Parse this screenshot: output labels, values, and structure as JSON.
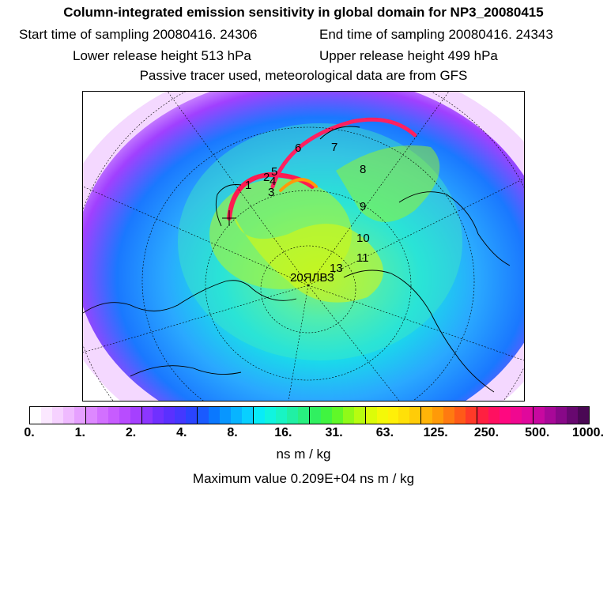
{
  "header": {
    "title": "Column-integrated emission sensitivity in global domain for NP3_20080415",
    "start_time": "Start time of sampling 20080416. 24306",
    "end_time": "End time of sampling 20080416. 24343",
    "lower_release": "Lower release height  513 hPa",
    "upper_release": "Upper release height  499 hPa",
    "tracer_note": "Passive tracer used, meteorological data are from GFS"
  },
  "map": {
    "projection": "polar-stereographic",
    "trajectory_labels": [
      "1",
      "2",
      "3",
      "4",
      "5",
      "6",
      "7",
      "8",
      "9",
      "10",
      "11",
      "13"
    ],
    "central_label": "20ЯЛВЗ"
  },
  "colorbar": {
    "labels": [
      "0.",
      "1.",
      "2.",
      "4.",
      "8.",
      "16.",
      "31.",
      "63.",
      "125.",
      "250.",
      "500.",
      "1000."
    ],
    "colors": [
      "#ffffff",
      "#fbe8ff",
      "#f6d2ff",
      "#efbaff",
      "#e6a0ff",
      "#dd88ff",
      "#d270ff",
      "#c75cff",
      "#b84cff",
      "#a540ff",
      "#8c36ff",
      "#7030ff",
      "#5a30ff",
      "#4438ff",
      "#2a44ff",
      "#1a5aff",
      "#0a78ff",
      "#0896ff",
      "#08b4ff",
      "#08d0ff",
      "#08ecf8",
      "#10f4e0",
      "#18f4c4",
      "#20f0a4",
      "#28f080",
      "#30f060",
      "#40f440",
      "#60f828",
      "#90fa18",
      "#b8fc10",
      "#dcfc08",
      "#f4f808",
      "#fff008",
      "#ffe008",
      "#ffcc08",
      "#ffb408",
      "#ff9a08",
      "#ff7a10",
      "#ff5a18",
      "#ff3a28",
      "#ff2040",
      "#ff1060",
      "#ff0880",
      "#f00890",
      "#e0089c",
      "#c808a0",
      "#a80898",
      "#880888",
      "#680870",
      "#4a0854"
    ]
  },
  "footer": {
    "units": "ns m / kg",
    "max_value": "Maximum value  0.209E+04 ns m / kg"
  }
}
